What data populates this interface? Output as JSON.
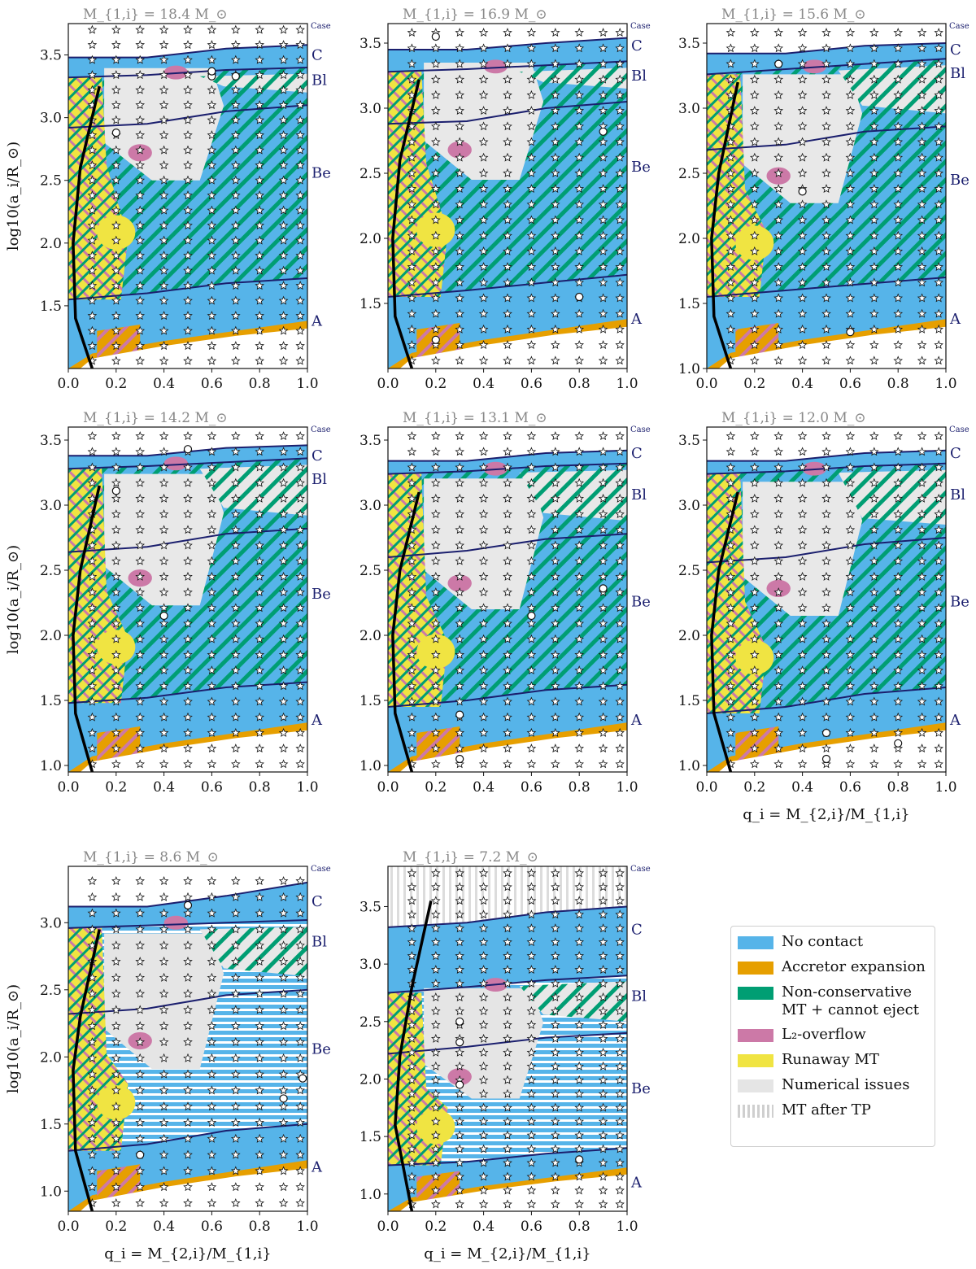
{
  "chart_data": [
    {
      "type": "heatmap",
      "title": "M_{1,i} = 18.4 M_⊙",
      "ylim": [
        1.0,
        3.75
      ],
      "ylabel": "log10(a_i/R_⊙)",
      "xlabel": "",
      "yticks": [
        1.5,
        2.0,
        2.5,
        3.0,
        3.5
      ],
      "boundaries": {
        "A": [
          1.55,
          1.6,
          1.68,
          1.72
        ],
        "Be": [
          2.92,
          2.95,
          3.05,
          3.1
        ],
        "Bl": [
          3.32,
          3.34,
          3.38,
          3.4
        ],
        "C": [
          3.48,
          3.48,
          3.55,
          3.58
        ]
      },
      "case_labels": [
        {
          "name": "A",
          "y": 1.38
        },
        {
          "name": "Be",
          "y": 2.56
        },
        {
          "name": "Bl",
          "y": 3.3
        },
        {
          "name": "C",
          "y": 3.5
        }
      ],
      "critical_line": [
        [
          0.13,
          3.25
        ],
        [
          0.05,
          2.6
        ],
        [
          0.02,
          2.0
        ],
        [
          0.03,
          1.4
        ],
        [
          0.1,
          1.0
        ]
      ],
      "open_points": [
        [
          0.2,
          2.88
        ],
        [
          0.6,
          3.33
        ],
        [
          0.6,
          3.37
        ],
        [
          0.7,
          3.33
        ]
      ]
    },
    {
      "type": "heatmap",
      "title": "M_{1,i} = 16.9 M_⊙",
      "ylim": [
        1.0,
        3.65
      ],
      "ylabel": "",
      "xlabel": "",
      "yticks": [
        1.5,
        2.0,
        2.5,
        3.0,
        3.5
      ],
      "boundaries": {
        "A": [
          1.55,
          1.6,
          1.66,
          1.72
        ],
        "Be": [
          2.88,
          2.9,
          3.0,
          3.05
        ],
        "Bl": [
          3.28,
          3.3,
          3.33,
          3.36
        ],
        "C": [
          3.45,
          3.45,
          3.5,
          3.54
        ]
      },
      "case_labels": [
        {
          "name": "A",
          "y": 1.38
        },
        {
          "name": "Be",
          "y": 2.55
        },
        {
          "name": "Bl",
          "y": 3.25
        },
        {
          "name": "C",
          "y": 3.48
        }
      ],
      "critical_line": [
        [
          0.13,
          3.22
        ],
        [
          0.05,
          2.6
        ],
        [
          0.02,
          2.0
        ],
        [
          0.03,
          1.4
        ],
        [
          0.1,
          1.0
        ]
      ],
      "open_points": [
        [
          0.2,
          1.22
        ],
        [
          0.8,
          1.55
        ],
        [
          0.9,
          2.82
        ],
        [
          0.2,
          3.55
        ]
      ]
    },
    {
      "type": "heatmap",
      "title": "M_{1,i} = 15.6 M_⊙",
      "ylim": [
        1.0,
        3.65
      ],
      "ylabel": "",
      "xlabel": "",
      "yticks": [
        1.0,
        1.5,
        2.0,
        2.5,
        3.0,
        3.5
      ],
      "boundaries": {
        "A": [
          1.55,
          1.6,
          1.65,
          1.7
        ],
        "Be": [
          2.68,
          2.72,
          2.82,
          2.86
        ],
        "Bl": [
          3.26,
          3.3,
          3.34,
          3.38
        ],
        "C": [
          3.42,
          3.42,
          3.48,
          3.5
        ]
      },
      "case_labels": [
        {
          "name": "A",
          "y": 1.38
        },
        {
          "name": "Be",
          "y": 2.45
        },
        {
          "name": "Bl",
          "y": 3.27
        },
        {
          "name": "C",
          "y": 3.45
        }
      ],
      "critical_line": [
        [
          0.13,
          3.2
        ],
        [
          0.05,
          2.5
        ],
        [
          0.02,
          2.0
        ],
        [
          0.03,
          1.4
        ],
        [
          0.1,
          1.0
        ]
      ],
      "open_points": [
        [
          0.3,
          3.34
        ],
        [
          0.4,
          2.36
        ],
        [
          0.6,
          1.28
        ]
      ]
    },
    {
      "type": "heatmap",
      "title": "M_{1,i} = 14.2 M_⊙",
      "ylim": [
        0.95,
        3.6
      ],
      "ylabel": "log10(a_i/R_⊙)",
      "xlabel": "",
      "yticks": [
        1.0,
        1.5,
        2.0,
        2.5,
        3.0,
        3.5
      ],
      "boundaries": {
        "A": [
          1.48,
          1.52,
          1.6,
          1.64
        ],
        "Be": [
          2.64,
          2.68,
          2.78,
          2.82
        ],
        "Bl": [
          3.28,
          3.3,
          3.33,
          3.36
        ],
        "C": [
          3.38,
          3.38,
          3.44,
          3.46
        ]
      },
      "case_labels": [
        {
          "name": "A",
          "y": 1.35
        },
        {
          "name": "Be",
          "y": 2.32
        },
        {
          "name": "Bl",
          "y": 3.2
        },
        {
          "name": "C",
          "y": 3.38
        }
      ],
      "critical_line": [
        [
          0.13,
          3.15
        ],
        [
          0.05,
          2.5
        ],
        [
          0.02,
          2.0
        ],
        [
          0.03,
          1.4
        ],
        [
          0.1,
          0.95
        ]
      ],
      "open_points": [
        [
          0.2,
          3.11
        ],
        [
          0.4,
          2.15
        ],
        [
          0.5,
          3.43
        ]
      ]
    },
    {
      "type": "heatmap",
      "title": "M_{1,i} = 13.1 M_⊙",
      "ylim": [
        0.95,
        3.6
      ],
      "ylabel": "",
      "xlabel": "",
      "yticks": [
        1.0,
        1.5,
        2.0,
        2.5,
        3.0,
        3.5
      ],
      "boundaries": {
        "A": [
          1.45,
          1.5,
          1.58,
          1.62
        ],
        "Be": [
          2.6,
          2.65,
          2.74,
          2.78
        ],
        "Bl": [
          3.24,
          3.26,
          3.3,
          3.32
        ],
        "C": [
          3.34,
          3.34,
          3.4,
          3.42
        ]
      },
      "case_labels": [
        {
          "name": "A",
          "y": 1.35
        },
        {
          "name": "Be",
          "y": 2.26
        },
        {
          "name": "Bl",
          "y": 3.08
        },
        {
          "name": "C",
          "y": 3.4
        }
      ],
      "critical_line": [
        [
          0.13,
          3.1
        ],
        [
          0.05,
          2.5
        ],
        [
          0.02,
          2.0
        ],
        [
          0.03,
          1.4
        ],
        [
          0.1,
          0.95
        ]
      ],
      "open_points": [
        [
          0.3,
          1.05
        ],
        [
          0.3,
          1.39
        ],
        [
          0.6,
          2.15
        ],
        [
          0.9,
          2.36
        ]
      ]
    },
    {
      "type": "heatmap",
      "title": "M_{1,i} = 12.0 M_⊙",
      "ylim": [
        0.95,
        3.6
      ],
      "ylabel": "",
      "xlabel": "q_i = M_{2,i}/M_{1,i}",
      "yticks": [
        1.0,
        1.5,
        2.0,
        2.5,
        3.0,
        3.5
      ],
      "boundaries": {
        "A": [
          1.4,
          1.45,
          1.55,
          1.6
        ],
        "Be": [
          2.56,
          2.6,
          2.7,
          2.75
        ],
        "Bl": [
          3.24,
          3.26,
          3.3,
          3.32
        ],
        "C": [
          3.34,
          3.34,
          3.4,
          3.42
        ]
      },
      "case_labels": [
        {
          "name": "A",
          "y": 1.35
        },
        {
          "name": "Be",
          "y": 2.26
        },
        {
          "name": "Bl",
          "y": 3.08
        },
        {
          "name": "C",
          "y": 3.4
        }
      ],
      "critical_line": [
        [
          0.13,
          3.1
        ],
        [
          0.05,
          2.5
        ],
        [
          0.02,
          2.0
        ],
        [
          0.03,
          1.4
        ],
        [
          0.1,
          0.95
        ]
      ],
      "open_points": [
        [
          0.5,
          1.05
        ],
        [
          0.5,
          1.25
        ],
        [
          0.8,
          1.17
        ]
      ]
    },
    {
      "type": "heatmap",
      "title": "M_{1,i} = 8.6 M_⊙",
      "ylim": [
        0.85,
        3.42
      ],
      "ylabel": "log10(a_i/R_⊙)",
      "xlabel": "q_i = M_{2,i}/M_{1,i}",
      "yticks": [
        1.0,
        1.5,
        2.0,
        2.5,
        3.0
      ],
      "boundaries": {
        "A": [
          1.3,
          1.35,
          1.45,
          1.5
        ],
        "Be": [
          2.32,
          2.36,
          2.46,
          2.5
        ],
        "Bl": [
          2.96,
          2.98,
          3.0,
          3.02
        ],
        "C": [
          3.12,
          3.12,
          3.2,
          3.3
        ]
      },
      "case_labels": [
        {
          "name": "A",
          "y": 1.18
        },
        {
          "name": "Be",
          "y": 2.06
        },
        {
          "name": "Bl",
          "y": 2.86
        },
        {
          "name": "C",
          "y": 3.16
        }
      ],
      "critical_line": [
        [
          0.13,
          2.95
        ],
        [
          0.05,
          2.3
        ],
        [
          0.02,
          1.9
        ],
        [
          0.03,
          1.3
        ],
        [
          0.1,
          0.85
        ]
      ],
      "open_points": [
        [
          0.3,
          1.27
        ],
        [
          0.5,
          3.13
        ],
        [
          0.9,
          1.69
        ],
        [
          0.98,
          1.84
        ]
      ]
    },
    {
      "type": "heatmap",
      "title": "M_{1,i} = 7.2 M_⊙",
      "ylim": [
        0.85,
        3.85
      ],
      "ylabel": "",
      "xlabel": "q_i = M_{2,i}/M_{1,i}",
      "yticks": [
        1.0,
        1.5,
        2.0,
        2.5,
        3.0,
        3.5
      ],
      "boundaries": {
        "A": [
          1.25,
          1.28,
          1.35,
          1.4
        ],
        "Be": [
          2.22,
          2.28,
          2.36,
          2.4
        ],
        "Bl": [
          2.75,
          2.8,
          2.86,
          2.9
        ],
        "C": [
          3.32,
          3.36,
          3.45,
          3.5
        ]
      },
      "case_labels": [
        {
          "name": "A",
          "y": 1.1
        },
        {
          "name": "Be",
          "y": 1.92
        },
        {
          "name": "Bl",
          "y": 2.72
        },
        {
          "name": "C",
          "y": 3.3
        }
      ],
      "critical_line": [
        [
          0.18,
          3.55
        ],
        [
          0.1,
          2.8
        ],
        [
          0.05,
          2.2
        ],
        [
          0.03,
          1.6
        ],
        [
          0.1,
          0.85
        ]
      ],
      "open_points": [
        [
          0.3,
          2.5
        ],
        [
          0.3,
          2.32
        ],
        [
          0.3,
          1.95
        ],
        [
          0.8,
          1.3
        ]
      ]
    }
  ],
  "x_ticks": [
    "0.0",
    "0.2",
    "0.4",
    "0.6",
    "0.8",
    "1.0"
  ],
  "case_header": "Case",
  "legend": [
    {
      "label": "No contact",
      "color": "#56b4e9",
      "pattern": "solid"
    },
    {
      "label": "Accretor expansion",
      "color": "#e69f00",
      "pattern": "solid"
    },
    {
      "label": "Non-conservative\nMT + cannot eject",
      "color": "#009e73",
      "pattern": "solid"
    },
    {
      "label": "L₂-overflow",
      "color": "#cc79a7",
      "pattern": "solid"
    },
    {
      "label": "Runaway MT",
      "color": "#f0e442",
      "pattern": "solid"
    },
    {
      "label": "Numerical issues",
      "color": "#e5e5e5",
      "pattern": "solid"
    },
    {
      "label": "MT after TP",
      "color": "#cfcfcf",
      "pattern": "vstripes"
    }
  ]
}
